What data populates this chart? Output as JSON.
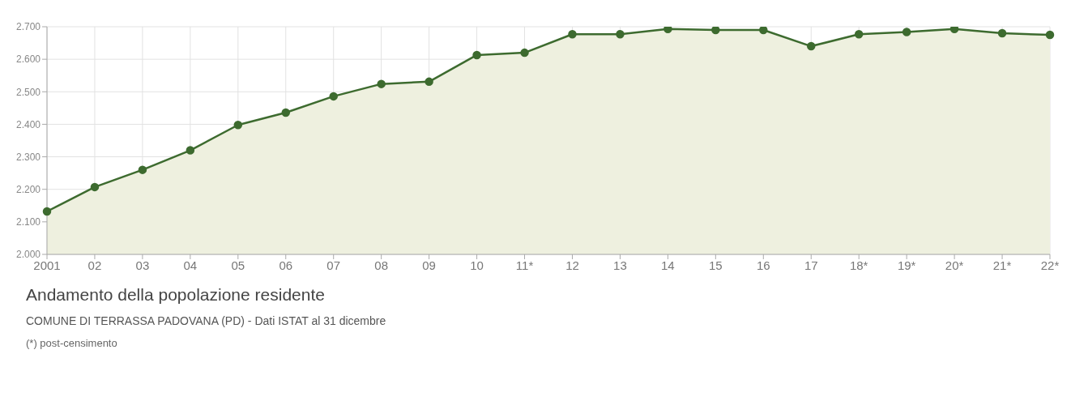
{
  "chart_data": {
    "type": "area",
    "title": "Andamento della popolazione residente",
    "subtitle": "COMUNE DI TERRASSA PADOVANA (PD) - Dati ISTAT al 31 dicembre",
    "annotations": [
      "(*) post-censimento"
    ],
    "categories": [
      "2001",
      "02",
      "03",
      "04",
      "05",
      "06",
      "07",
      "08",
      "09",
      "10",
      "11*",
      "12",
      "13",
      "14",
      "15",
      "16",
      "17",
      "18*",
      "19*",
      "20*",
      "21*",
      "22*"
    ],
    "series": [
      {
        "color": "#3d6b2f",
        "values": [
          2132,
          2207,
          2260,
          2320,
          2398,
          2436,
          2486,
          2524,
          2531,
          2613,
          2620,
          2677,
          2677,
          2693,
          2690,
          2690,
          2640,
          2677,
          2684,
          2693,
          2680,
          2675
        ]
      }
    ],
    "ylim": [
      2000,
      2700
    ],
    "yticks": [
      {
        "value": 2000,
        "label": "2.000"
      },
      {
        "value": 2100,
        "label": "2.100"
      },
      {
        "value": 2200,
        "label": "2.200"
      },
      {
        "value": 2300,
        "label": "2.300"
      },
      {
        "value": 2400,
        "label": "2.400"
      },
      {
        "value": 2500,
        "label": "2.500"
      },
      {
        "value": 2600,
        "label": "2.600"
      },
      {
        "value": 2700,
        "label": "2.700"
      }
    ],
    "grid": true,
    "marker": "circle",
    "line_style": "solid"
  }
}
